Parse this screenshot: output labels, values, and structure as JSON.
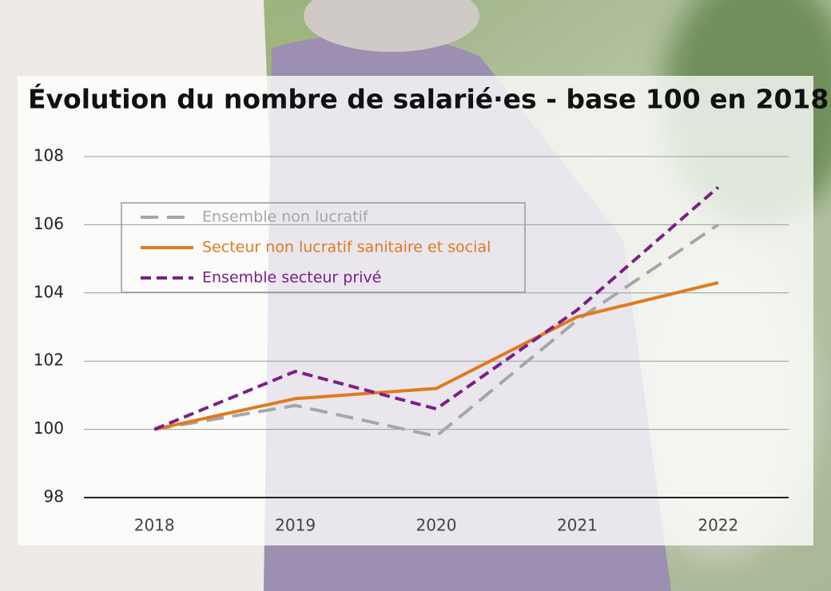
{
  "chart_data": {
    "type": "line",
    "title": "Évolution du nombre de salarié·es - base 100 en 2018",
    "categories": [
      "2018",
      "2019",
      "2020",
      "2021",
      "2022"
    ],
    "series": [
      {
        "name": "Ensemble non lucratif",
        "color": "#a6a6a6",
        "style": "long-dash",
        "values": [
          100,
          100.7,
          99.8,
          103.2,
          106.0
        ]
      },
      {
        "name": "Secteur non lucratif sanitaire et social",
        "color": "#e07a1f",
        "style": "solid",
        "values": [
          100,
          100.9,
          101.2,
          103.3,
          104.3
        ]
      },
      {
        "name": "Ensemble secteur privé",
        "color": "#7b1f86",
        "style": "short-dash",
        "values": [
          100,
          101.7,
          100.6,
          103.5,
          107.1
        ]
      }
    ],
    "ylim": [
      98,
      108
    ],
    "yticks": [
      98,
      100,
      102,
      104,
      106,
      108
    ],
    "grid": true,
    "legend": "upper left"
  }
}
